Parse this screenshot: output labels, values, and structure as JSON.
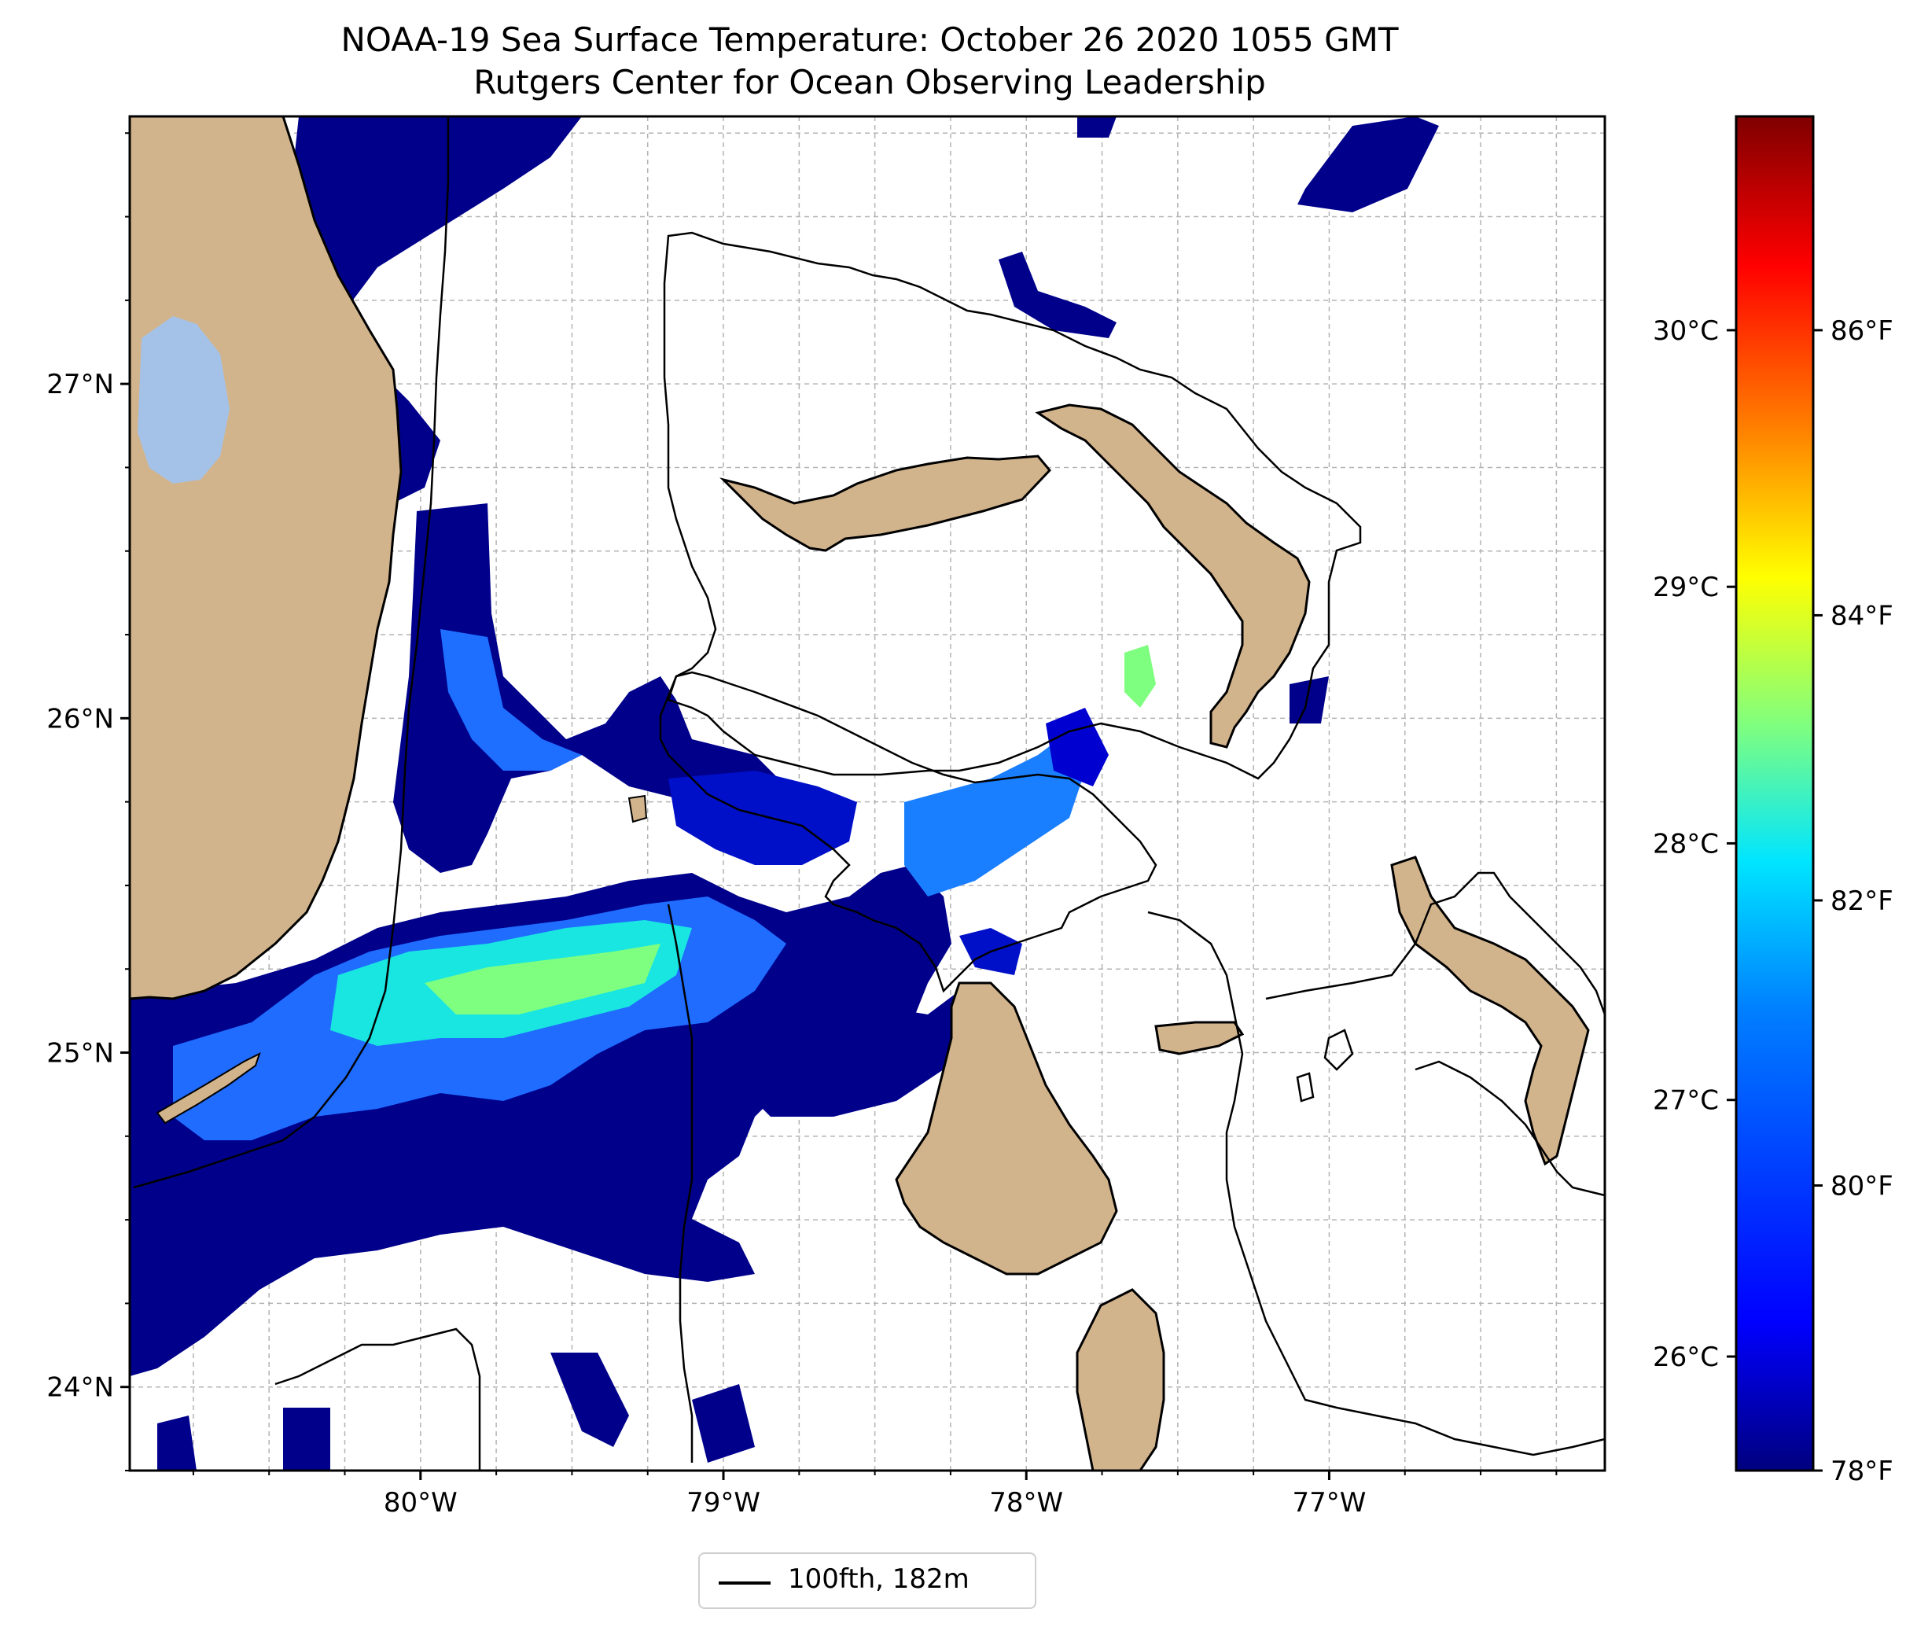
{
  "title": {
    "line1": "NOAA-19 Sea Surface Temperature: October 26 2020 1055 GMT",
    "line2": "Rutgers Center for Ocean Observing Leadership"
  },
  "map": {
    "lon_range": [
      -80.96,
      -76.09
    ],
    "lat_range": [
      23.75,
      27.8
    ],
    "lat_ticks": [
      {
        "value": 27,
        "label": "27°N"
      },
      {
        "value": 26,
        "label": "26°N"
      },
      {
        "value": 25,
        "label": "25°N"
      },
      {
        "value": 24,
        "label": "24°N"
      }
    ],
    "lon_ticks": [
      {
        "value": -80,
        "label": "80°W"
      },
      {
        "value": -79,
        "label": "79°W"
      },
      {
        "value": -78,
        "label": "78°W"
      },
      {
        "value": -77,
        "label": "77°W"
      }
    ],
    "gridlines": true,
    "land_color": "#d2b48c",
    "lake_color": "#a4c2e8"
  },
  "colorbar": {
    "celsius_ticks": [
      {
        "value": 26,
        "label": "26°C"
      },
      {
        "value": 27,
        "label": "27°C"
      },
      {
        "value": 28,
        "label": "28°C"
      },
      {
        "value": 29,
        "label": "29°C"
      },
      {
        "value": 30,
        "label": "30°C"
      }
    ],
    "fahrenheit_ticks": [
      {
        "value": 78,
        "label": "78°F"
      },
      {
        "value": 80,
        "label": "80°F"
      },
      {
        "value": 82,
        "label": "82°F"
      },
      {
        "value": 84,
        "label": "84°F"
      },
      {
        "value": 86,
        "label": "86°F"
      }
    ],
    "range_f": [
      78,
      87.5
    ],
    "colormap": [
      "#00007f",
      "#0000ff",
      "#007fff",
      "#00e5ff",
      "#7fff7f",
      "#ffff00",
      "#ff7f00",
      "#ff0000",
      "#7f0000"
    ]
  },
  "legend": {
    "label": "100fth, 182m"
  }
}
